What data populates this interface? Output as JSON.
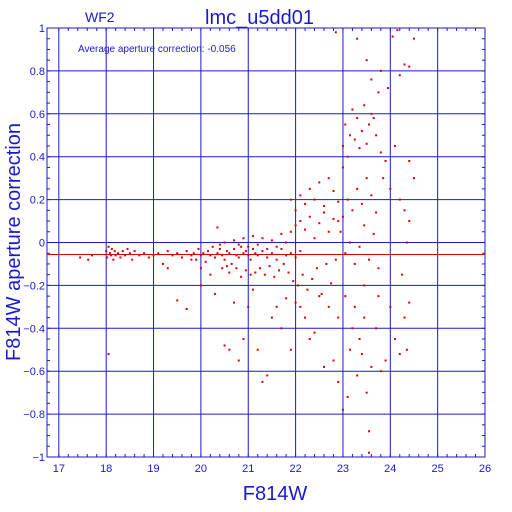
{
  "chart_data": {
    "type": "scatter",
    "panel_label": "WF2",
    "title": "lmc_u5dd01",
    "annotation": "Average aperture correction: -0.056",
    "xlabel": "F814W",
    "ylabel": "F814W aperture correction",
    "xlim": [
      16.75,
      26
    ],
    "ylim": [
      -1,
      1
    ],
    "xticks": [
      17,
      18,
      19,
      20,
      21,
      22,
      23,
      24,
      25,
      26
    ],
    "yticks": [
      -1,
      -0.8,
      -0.6,
      -0.4,
      -0.2,
      0,
      0.2,
      0.4,
      0.6,
      0.8,
      1
    ],
    "xtick_labels": [
      "17",
      "18",
      "19",
      "20",
      "21",
      "22",
      "23",
      "24",
      "25",
      "26"
    ],
    "ytick_labels": [
      "−1",
      "−0.8",
      "−0.6",
      "−0.4",
      "−0.2",
      "0",
      "0.2",
      "0.4",
      "0.6",
      "0.8",
      "1"
    ],
    "reference_line": {
      "y": -0.056,
      "color": "#dd0000"
    },
    "grid": true,
    "colors": {
      "axes": "#1a1acc",
      "points": "#dd0000"
    },
    "series": [
      {
        "points": [
          [
            17.45,
            -0.07
          ],
          [
            17.62,
            -0.08
          ],
          [
            17.7,
            -0.06
          ],
          [
            18.0,
            -0.04
          ],
          [
            18.02,
            -0.07
          ],
          [
            18.05,
            -0.02
          ],
          [
            18.08,
            -0.05
          ],
          [
            18.1,
            -0.06
          ],
          [
            18.12,
            -0.03
          ],
          [
            18.15,
            -0.08
          ],
          [
            18.18,
            -0.04
          ],
          [
            18.2,
            -0.06
          ],
          [
            18.25,
            -0.05
          ],
          [
            18.3,
            -0.07
          ],
          [
            18.35,
            -0.04
          ],
          [
            18.4,
            -0.06
          ],
          [
            18.45,
            -0.03
          ],
          [
            18.5,
            -0.05
          ],
          [
            18.55,
            -0.08
          ],
          [
            18.6,
            -0.04
          ],
          [
            18.7,
            -0.06
          ],
          [
            18.8,
            -0.05
          ],
          [
            18.9,
            -0.07
          ],
          [
            19.0,
            -0.06
          ],
          [
            19.1,
            -0.05
          ],
          [
            19.2,
            -0.1
          ],
          [
            19.3,
            -0.04
          ],
          [
            19.4,
            -0.06
          ],
          [
            19.5,
            -0.05
          ],
          [
            18.05,
            -0.52
          ],
          [
            19.6,
            -0.07
          ],
          [
            19.7,
            -0.04
          ],
          [
            19.8,
            -0.06
          ],
          [
            19.85,
            -0.05
          ],
          [
            19.9,
            -0.08
          ],
          [
            19.95,
            -0.03
          ],
          [
            20.0,
            -0.06
          ],
          [
            20.05,
            -0.05
          ],
          [
            20.1,
            -0.09
          ],
          [
            20.15,
            -0.04
          ],
          [
            20.2,
            -0.06
          ],
          [
            20.25,
            -0.02
          ],
          [
            20.3,
            -0.07
          ],
          [
            20.35,
            -0.05
          ],
          [
            20.4,
            -0.03
          ],
          [
            20.45,
            -0.06
          ],
          [
            20.5,
            -0.08
          ],
          [
            20.55,
            -0.04
          ],
          [
            20.6,
            -0.05
          ],
          [
            20.65,
            -0.1
          ],
          [
            20.7,
            -0.03
          ],
          [
            20.75,
            -0.06
          ],
          [
            20.8,
            -0.07
          ],
          [
            20.85,
            -0.02
          ],
          [
            20.9,
            -0.05
          ],
          [
            20.95,
            -0.04
          ],
          [
            21.0,
            -0.06
          ],
          [
            21.05,
            -0.08
          ],
          [
            21.1,
            -0.03
          ],
          [
            21.15,
            -0.05
          ],
          [
            20.35,
            0.07
          ],
          [
            20.4,
            -0.01
          ],
          [
            20.45,
            -0.12
          ],
          [
            20.5,
            0.0
          ],
          [
            20.55,
            -0.11
          ],
          [
            20.6,
            -0.14
          ],
          [
            20.7,
            0.01
          ],
          [
            20.75,
            -0.12
          ],
          [
            20.8,
            -0.01
          ],
          [
            20.85,
            -0.16
          ],
          [
            20.9,
            0.02
          ],
          [
            20.95,
            -0.13
          ],
          [
            21.0,
            -0.02
          ],
          [
            21.05,
            -0.15
          ],
          [
            21.1,
            0.03
          ],
          [
            21.15,
            -0.14
          ],
          [
            21.2,
            -0.01
          ],
          [
            21.25,
            -0.12
          ],
          [
            21.3,
            0.02
          ],
          [
            21.35,
            -0.15
          ],
          [
            21.4,
            -0.03
          ],
          [
            21.45,
            -0.11
          ],
          [
            21.5,
            0.01
          ],
          [
            21.55,
            -0.16
          ],
          [
            21.6,
            -0.02
          ],
          [
            21.65,
            -0.13
          ],
          [
            21.7,
            0.04
          ],
          [
            21.75,
            -0.1
          ],
          [
            21.8,
            0.0
          ],
          [
            21.85,
            -0.14
          ],
          [
            21.2,
            -0.06
          ],
          [
            21.3,
            -0.04
          ],
          [
            21.4,
            -0.07
          ],
          [
            21.5,
            -0.05
          ],
          [
            21.6,
            -0.08
          ],
          [
            21.7,
            -0.03
          ],
          [
            21.8,
            -0.06
          ],
          [
            21.9,
            -0.05
          ],
          [
            22.0,
            -0.07
          ],
          [
            22.1,
            -0.04
          ],
          [
            21.9,
            0.05
          ],
          [
            21.95,
            -0.18
          ],
          [
            22.0,
            0.08
          ],
          [
            22.05,
            -0.2
          ],
          [
            22.1,
            0.1
          ],
          [
            22.15,
            -0.15
          ],
          [
            22.2,
            0.06
          ],
          [
            22.25,
            -0.22
          ],
          [
            22.3,
            0.12
          ],
          [
            22.35,
            -0.17
          ],
          [
            22.4,
            0.02
          ],
          [
            22.45,
            -0.12
          ],
          [
            22.5,
            0.09
          ],
          [
            22.55,
            -0.24
          ],
          [
            22.6,
            0.14
          ],
          [
            22.65,
            -0.1
          ],
          [
            22.7,
            0.05
          ],
          [
            22.75,
            -0.19
          ],
          [
            22.8,
            0.11
          ],
          [
            22.85,
            -0.08
          ],
          [
            21.9,
            0.2
          ],
          [
            22.0,
            0.15
          ],
          [
            22.1,
            0.22
          ],
          [
            22.2,
            0.18
          ],
          [
            22.3,
            0.25
          ],
          [
            22.4,
            0.2
          ],
          [
            22.5,
            0.28
          ],
          [
            22.6,
            0.17
          ],
          [
            22.7,
            0.3
          ],
          [
            22.8,
            0.24
          ],
          [
            22.9,
            0.19
          ],
          [
            23.0,
            0.35
          ],
          [
            22.9,
            0.1
          ],
          [
            22.95,
            0.05
          ],
          [
            23.0,
            0.12
          ],
          [
            23.05,
            -0.05
          ],
          [
            23.1,
            0.2
          ],
          [
            23.15,
            0.0
          ],
          [
            23.2,
            0.15
          ],
          [
            23.25,
            -0.1
          ],
          [
            23.3,
            0.25
          ],
          [
            23.35,
            -0.02
          ],
          [
            23.4,
            0.18
          ],
          [
            23.45,
            0.08
          ],
          [
            23.5,
            0.3
          ],
          [
            23.55,
            -0.08
          ],
          [
            23.6,
            0.22
          ],
          [
            23.65,
            0.04
          ],
          [
            23.7,
            0.14
          ],
          [
            23.75,
            -0.12
          ],
          [
            23.0,
            0.45
          ],
          [
            23.05,
            0.55
          ],
          [
            23.1,
            0.4
          ],
          [
            23.15,
            0.5
          ],
          [
            23.2,
            0.62
          ],
          [
            23.25,
            0.48
          ],
          [
            23.3,
            0.58
          ],
          [
            23.35,
            0.44
          ],
          [
            23.4,
            0.52
          ],
          [
            23.5,
            0.46
          ],
          [
            23.6,
            0.6
          ],
          [
            23.7,
            0.5
          ],
          [
            23.8,
            0.42
          ],
          [
            23.45,
            0.64
          ],
          [
            23.55,
            0.55
          ],
          [
            23.65,
            0.58
          ],
          [
            23.85,
            0.3
          ],
          [
            23.9,
            0.38
          ],
          [
            24.0,
            0.25
          ],
          [
            24.1,
            0.45
          ],
          [
            24.2,
            0.2
          ],
          [
            24.3,
            0.15
          ],
          [
            24.4,
            0.38
          ],
          [
            24.5,
            0.3
          ],
          [
            24.4,
            0.1
          ],
          [
            24.35,
            0.0
          ],
          [
            22.85,
            0.98
          ],
          [
            23.3,
            0.95
          ],
          [
            23.5,
            0.85
          ],
          [
            23.6,
            0.76
          ],
          [
            23.75,
            0.7
          ],
          [
            23.8,
            0.8
          ],
          [
            24.05,
            0.96
          ],
          [
            24.15,
            0.99
          ],
          [
            24.3,
            0.83
          ],
          [
            24.4,
            0.82
          ],
          [
            24.5,
            0.95
          ],
          [
            23.95,
            0.72
          ],
          [
            24.2,
            0.78
          ],
          [
            20.0,
            -0.2
          ],
          [
            19.7,
            -0.31
          ],
          [
            19.5,
            -0.27
          ],
          [
            20.3,
            -0.24
          ],
          [
            20.5,
            -0.48
          ],
          [
            20.6,
            -0.5
          ],
          [
            20.8,
            -0.55
          ],
          [
            20.9,
            -0.45
          ],
          [
            21.0,
            -0.3
          ],
          [
            21.2,
            -0.5
          ],
          [
            21.4,
            -0.62
          ],
          [
            21.3,
            -0.65
          ],
          [
            21.5,
            -0.35
          ],
          [
            21.7,
            -0.4
          ],
          [
            21.9,
            -0.5
          ],
          [
            22.0,
            -0.28
          ],
          [
            22.2,
            -0.35
          ],
          [
            22.4,
            -0.42
          ],
          [
            22.6,
            -0.58
          ],
          [
            22.8,
            -0.55
          ],
          [
            22.9,
            -0.65
          ],
          [
            23.0,
            -0.78
          ],
          [
            23.1,
            -0.72
          ],
          [
            23.3,
            -0.62
          ],
          [
            23.4,
            -0.52
          ],
          [
            23.5,
            -0.7
          ],
          [
            23.6,
            -0.58
          ],
          [
            23.55,
            -0.88
          ],
          [
            23.7,
            -0.4
          ],
          [
            23.8,
            -0.6
          ],
          [
            23.9,
            -0.55
          ],
          [
            24.0,
            -0.3
          ],
          [
            24.1,
            -0.45
          ],
          [
            24.2,
            -0.52
          ],
          [
            24.3,
            -0.35
          ],
          [
            24.4,
            -0.28
          ],
          [
            24.25,
            -0.15
          ],
          [
            24.35,
            -0.5
          ],
          [
            23.45,
            -0.35
          ],
          [
            23.35,
            -0.45
          ],
          [
            23.25,
            -0.3
          ],
          [
            23.15,
            -0.5
          ],
          [
            22.7,
            -0.3
          ],
          [
            22.5,
            -0.25
          ],
          [
            22.3,
            -0.45
          ],
          [
            22.1,
            -0.3
          ],
          [
            21.8,
            -0.26
          ],
          [
            21.6,
            -0.3
          ],
          [
            21.1,
            -0.22
          ],
          [
            20.7,
            -0.28
          ],
          [
            20.2,
            -0.15
          ],
          [
            20.0,
            -0.12
          ],
          [
            19.8,
            -0.08
          ],
          [
            19.3,
            -0.12
          ],
          [
            23.55,
            -0.98
          ],
          [
            23.45,
            -0.2
          ],
          [
            23.2,
            -0.4
          ],
          [
            23.05,
            -0.25
          ],
          [
            22.9,
            -0.35
          ],
          [
            23.75,
            -0.25
          ]
        ]
      }
    ]
  }
}
